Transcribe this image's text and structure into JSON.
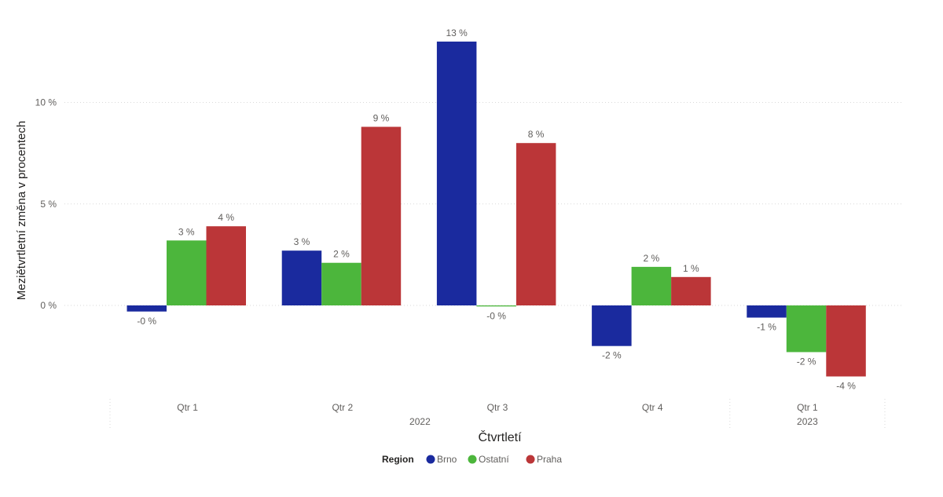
{
  "chart_data": {
    "type": "bar",
    "ylabel": "Meziětvrtletní změna v procentech",
    "xlabel": "Čtvrtletí",
    "ylim": [
      -4.5,
      14
    ],
    "yticks": [
      {
        "value": 0,
        "label": "0 %"
      },
      {
        "value": 5,
        "label": "5 %"
      },
      {
        "value": 10,
        "label": "10 %"
      }
    ],
    "grid": true,
    "categories": [
      "Qtr 1",
      "Qtr 2",
      "Qtr 3",
      "Qtr 4",
      "Qtr 1"
    ],
    "year_groups": [
      {
        "label": "2022",
        "categories": [
          0,
          1,
          2,
          3
        ]
      },
      {
        "label": "2023",
        "categories": [
          4
        ]
      }
    ],
    "series": [
      {
        "name": "Brno",
        "color": "#1a2a9e",
        "values": [
          -0.3,
          2.7,
          13.0,
          -2.0,
          -0.6
        ],
        "labels": [
          "-0 %",
          "3 %",
          "13 %",
          "-2 %",
          "-1 %"
        ]
      },
      {
        "name": "Ostatní",
        "color": "#4cb63c",
        "values": [
          3.2,
          2.1,
          -0.05,
          1.9,
          -2.3
        ],
        "labels": [
          "3 %",
          "2 %",
          "-0 %",
          "2 %",
          "-2 %"
        ]
      },
      {
        "name": "Praha",
        "color": "#bb3638",
        "values": [
          3.9,
          8.8,
          8.0,
          1.4,
          -3.5
        ],
        "labels": [
          "4 %",
          "9 %",
          "8 %",
          "1 %",
          "-4 %"
        ]
      }
    ],
    "legend": {
      "title": "Region",
      "position": "bottom"
    }
  }
}
